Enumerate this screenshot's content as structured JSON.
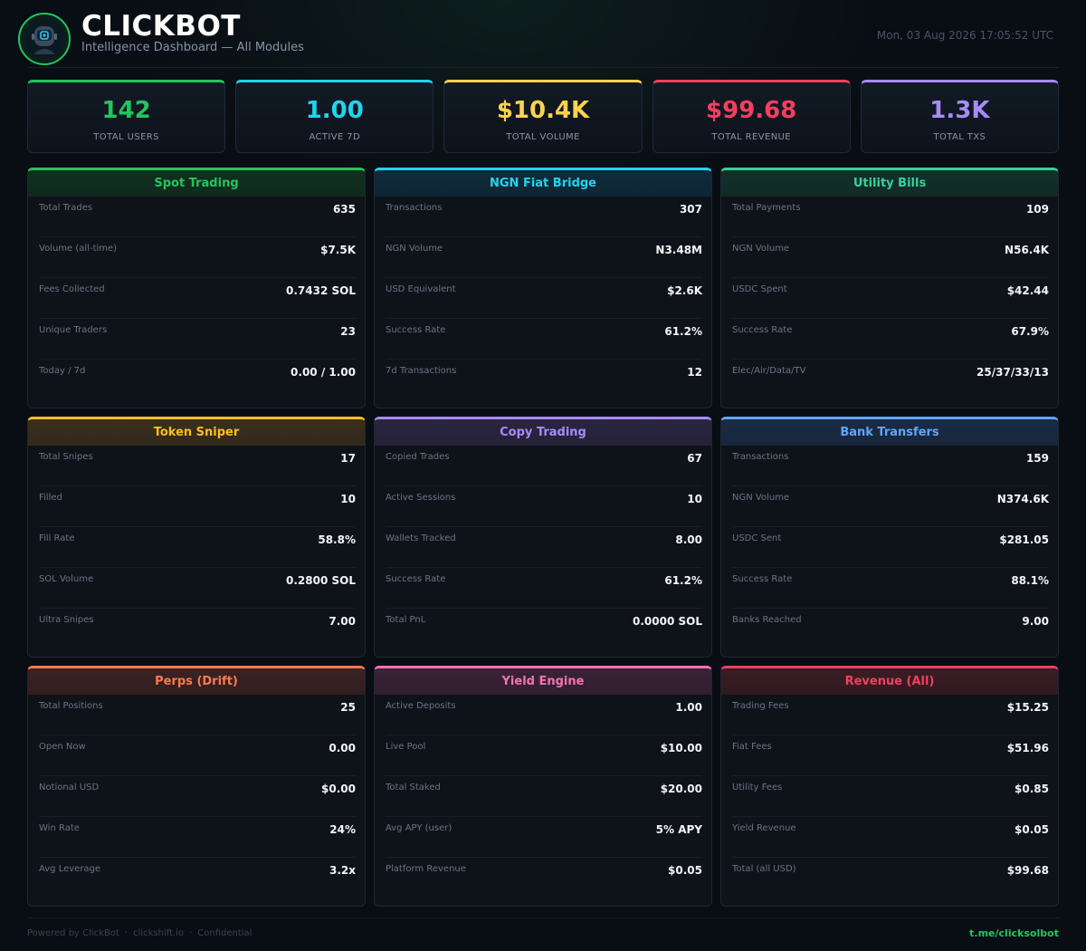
{
  "header": {
    "brand": "CLICKBOT",
    "subtitle": "Intelligence Dashboard — All Modules",
    "datetime": "Mon, 03 Aug 2026 17:05:52 UTC",
    "logo_icon": "robot-avatar-icon"
  },
  "kpis": [
    {
      "value": "142",
      "label": "TOTAL USERS",
      "color": "#22c55e"
    },
    {
      "value": "1.00",
      "label": "ACTIVE 7D",
      "color": "#22d3ee"
    },
    {
      "value": "$10.4K",
      "label": "TOTAL VOLUME",
      "color": "#fcd34d"
    },
    {
      "value": "$99.68",
      "label": "TOTAL REVENUE",
      "color": "#f43f5e"
    },
    {
      "value": "1.3K",
      "label": "TOTAL TXS",
      "color": "#a78bfa"
    }
  ],
  "modules": [
    {
      "title": "Spot Trading",
      "color": "#22c55e",
      "bg": "#10301f",
      "rows": [
        {
          "label": "Total Trades",
          "value": "635"
        },
        {
          "label": "Volume (all-time)",
          "value": "$7.5K"
        },
        {
          "label": "Fees Collected",
          "value": "0.7432 SOL"
        },
        {
          "label": "Unique Traders",
          "value": "23"
        },
        {
          "label": "Today / 7d",
          "value": "0.00 / 1.00"
        }
      ]
    },
    {
      "title": "NGN Fiat Bridge",
      "color": "#22d3ee",
      "bg": "#0f2b3a",
      "rows": [
        {
          "label": "Transactions",
          "value": "307"
        },
        {
          "label": "NGN Volume",
          "value": "N3.48M"
        },
        {
          "label": "USD Equivalent",
          "value": "$2.6K"
        },
        {
          "label": "Success Rate",
          "value": "61.2%"
        },
        {
          "label": "7d Transactions",
          "value": "12"
        }
      ]
    },
    {
      "title": "Utility Bills",
      "color": "#34d399",
      "bg": "#12302a",
      "rows": [
        {
          "label": "Total Payments",
          "value": "109"
        },
        {
          "label": "NGN Volume",
          "value": "N56.4K"
        },
        {
          "label": "USDC Spent",
          "value": "$42.44"
        },
        {
          "label": "Success Rate",
          "value": "67.9%"
        },
        {
          "label": "Elec/Air/Data/TV",
          "value": "25/37/33/13"
        }
      ]
    },
    {
      "title": "Token Sniper",
      "color": "#fbbf24",
      "bg": "#3a2f1c",
      "rows": [
        {
          "label": "Total Snipes",
          "value": "17"
        },
        {
          "label": "Filled",
          "value": "10"
        },
        {
          "label": "Fill Rate",
          "value": "58.8%"
        },
        {
          "label": "SOL Volume",
          "value": "0.2800 SOL"
        },
        {
          "label": "Ultra Snipes",
          "value": "7.00"
        }
      ]
    },
    {
      "title": "Copy Trading",
      "color": "#a78bfa",
      "bg": "#2a2540",
      "rows": [
        {
          "label": "Copied Trades",
          "value": "67"
        },
        {
          "label": "Active Sessions",
          "value": "10"
        },
        {
          "label": "Wallets Tracked",
          "value": "8.00"
        },
        {
          "label": "Success Rate",
          "value": "61.2%"
        },
        {
          "label": "Total PnL",
          "value": "0.0000 SOL"
        }
      ]
    },
    {
      "title": "Bank Transfers",
      "color": "#60a5fa",
      "bg": "#1a2b44",
      "rows": [
        {
          "label": "Transactions",
          "value": "159"
        },
        {
          "label": "NGN Volume",
          "value": "N374.6K"
        },
        {
          "label": "USDC Sent",
          "value": "$281.05"
        },
        {
          "label": "Success Rate",
          "value": "88.1%"
        },
        {
          "label": "Banks Reached",
          "value": "9.00"
        }
      ]
    },
    {
      "title": "Perps (Drift)",
      "color": "#fb7a4f",
      "bg": "#3a2222",
      "rows": [
        {
          "label": "Total Positions",
          "value": "25"
        },
        {
          "label": "Open Now",
          "value": "0.00"
        },
        {
          "label": "Notional USD",
          "value": "$0.00"
        },
        {
          "label": "Win Rate",
          "value": "24%"
        },
        {
          "label": "Avg Leverage",
          "value": "3.2x"
        }
      ]
    },
    {
      "title": "Yield Engine",
      "color": "#f472b6",
      "bg": "#3a2236",
      "rows": [
        {
          "label": "Active Deposits",
          "value": "1.00"
        },
        {
          "label": "Live Pool",
          "value": "$10.00"
        },
        {
          "label": "Total Staked",
          "value": "$20.00"
        },
        {
          "label": "Avg APY (user)",
          "value": "5% APY"
        },
        {
          "label": "Platform Revenue",
          "value": "$0.05"
        }
      ]
    },
    {
      "title": "Revenue (All)",
      "color": "#f43f5e",
      "bg": "#3a1c24",
      "rows": [
        {
          "label": "Trading Fees",
          "value": "$15.25"
        },
        {
          "label": "Fiat Fees",
          "value": "$51.96"
        },
        {
          "label": "Utility Fees",
          "value": "$0.85"
        },
        {
          "label": "Yield Revenue",
          "value": "$0.05"
        },
        {
          "label": "Total (all USD)",
          "value": "$99.68"
        }
      ]
    }
  ],
  "footer": {
    "left": [
      "Powered by ClickBot",
      "clickshift.io",
      "Confidential"
    ],
    "separator": "·",
    "link": "t.me/clicksolbot"
  }
}
